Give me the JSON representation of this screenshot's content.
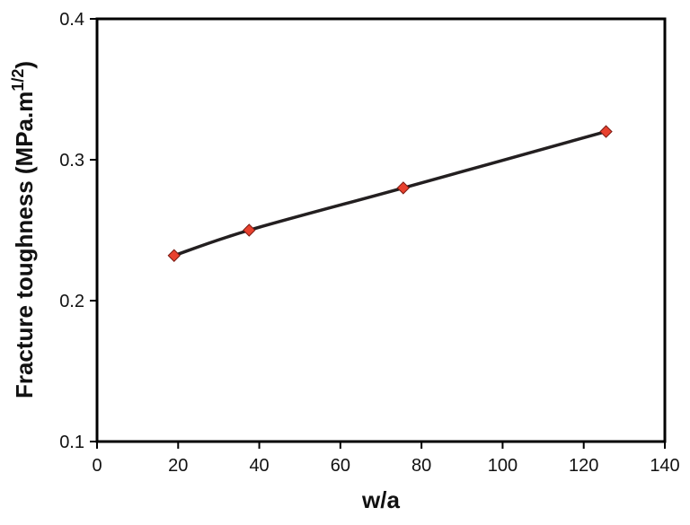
{
  "chart_data": {
    "type": "line",
    "title": "",
    "xlabel": "w/a",
    "ylabel": "Fracture toughness (MPa.m",
    "ylabel_sup": "1/2",
    "ylabel_end": ")",
    "xlim": [
      0,
      140
    ],
    "ylim": [
      0.1,
      0.4
    ],
    "x_ticks": [
      "0",
      "20",
      "40",
      "60",
      "80",
      "100",
      "120",
      "140"
    ],
    "y_ticks": [
      "0.1",
      "0.2",
      "0.3",
      "0.4"
    ],
    "grid": false,
    "legend": "none",
    "series": [
      {
        "x": [
          19,
          37.5,
          75.5,
          125.5
        ],
        "y": [
          0.232,
          0.25,
          0.28,
          0.32
        ],
        "line_color": "#231f20",
        "marker": "diamond",
        "marker_color": "#e8412e"
      }
    ]
  }
}
